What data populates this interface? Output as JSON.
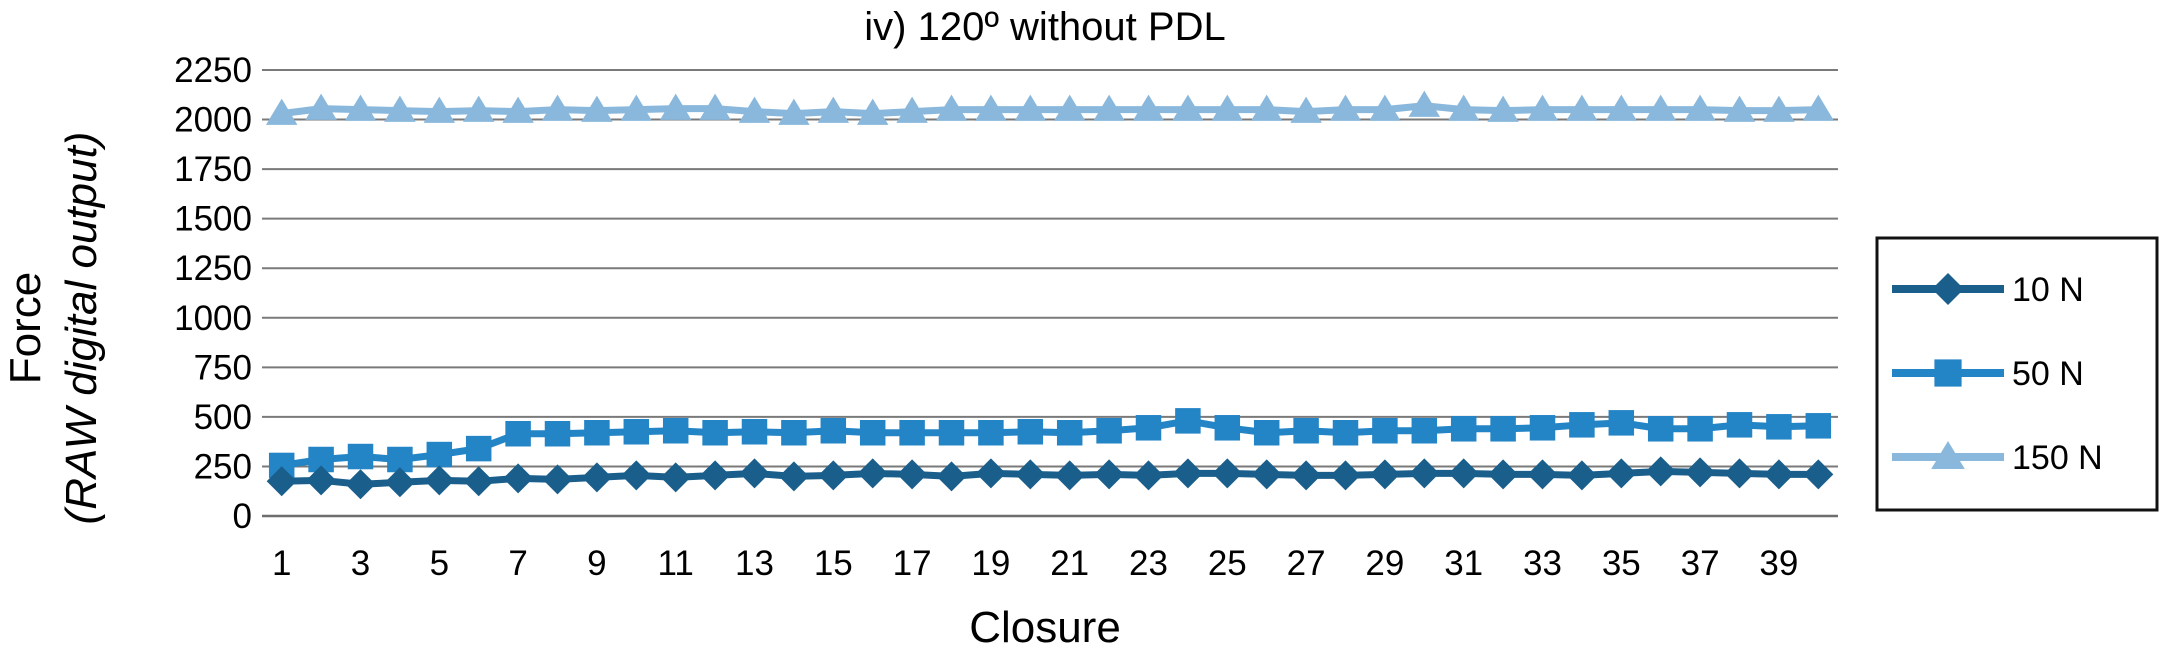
{
  "chart_data": {
    "type": "line",
    "title": "iv) 120º without PDL",
    "xlabel": "Closure",
    "ylabel": "Force",
    "ylabel_sub": "(RAW digital output)",
    "ylim": [
      0,
      2250
    ],
    "yticks": [
      "0",
      "250",
      "500",
      "750",
      "1000",
      "1250",
      "1500",
      "1750",
      "2000",
      "2250"
    ],
    "x": [
      1,
      2,
      3,
      4,
      5,
      6,
      7,
      8,
      9,
      10,
      11,
      12,
      13,
      14,
      15,
      16,
      17,
      18,
      19,
      20,
      21,
      22,
      23,
      24,
      25,
      26,
      27,
      28,
      29,
      30,
      31,
      32,
      33,
      34,
      35,
      36,
      37,
      38,
      39,
      40
    ],
    "xticks": [
      "1",
      "3",
      "5",
      "7",
      "9",
      "11",
      "13",
      "15",
      "17",
      "19",
      "21",
      "23",
      "25",
      "27",
      "29",
      "31",
      "33",
      "35",
      "37",
      "39"
    ],
    "grid": true,
    "legend_position": "right",
    "series": [
      {
        "name": "10 N",
        "marker": "diamond",
        "color": "#1a5e8c",
        "values": [
          175,
          180,
          160,
          170,
          180,
          175,
          190,
          185,
          195,
          205,
          195,
          205,
          215,
          200,
          205,
          215,
          210,
          200,
          215,
          210,
          205,
          210,
          205,
          215,
          215,
          210,
          205,
          205,
          210,
          215,
          215,
          210,
          210,
          205,
          215,
          225,
          220,
          215,
          210,
          210
        ]
      },
      {
        "name": "50 N",
        "marker": "square",
        "color": "#2384c6",
        "values": [
          255,
          285,
          300,
          285,
          310,
          340,
          415,
          415,
          420,
          425,
          430,
          420,
          425,
          420,
          430,
          420,
          420,
          420,
          420,
          425,
          420,
          430,
          445,
          480,
          445,
          420,
          430,
          420,
          430,
          430,
          440,
          440,
          445,
          460,
          470,
          440,
          440,
          460,
          450,
          455
        ]
      },
      {
        "name": "150 N",
        "marker": "triangle",
        "color": "#8ab8dc",
        "values": [
          2030,
          2055,
          2050,
          2045,
          2040,
          2045,
          2040,
          2050,
          2045,
          2050,
          2055,
          2055,
          2040,
          2030,
          2040,
          2030,
          2040,
          2050,
          2050,
          2050,
          2050,
          2050,
          2050,
          2050,
          2050,
          2050,
          2040,
          2050,
          2050,
          2070,
          2050,
          2045,
          2050,
          2050,
          2050,
          2050,
          2050,
          2045,
          2045,
          2050
        ]
      }
    ]
  }
}
